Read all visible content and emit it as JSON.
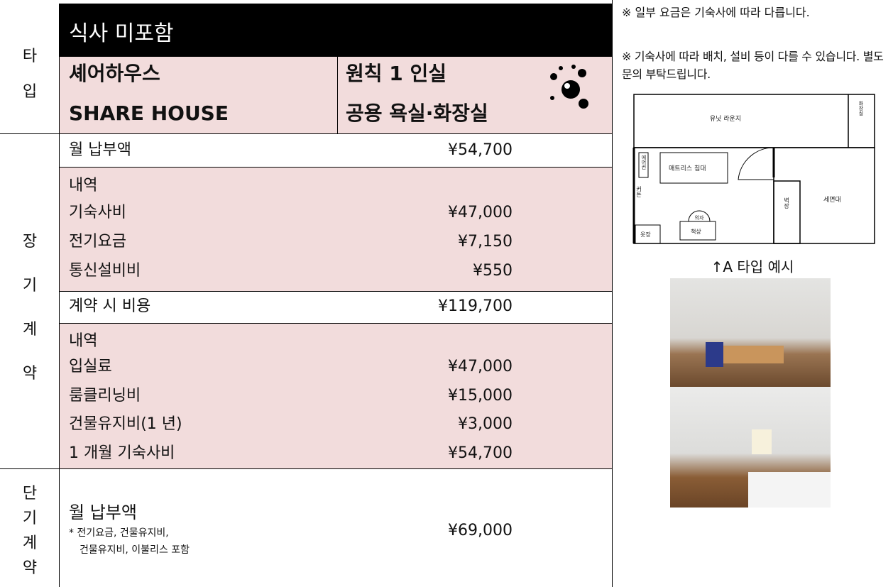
{
  "header": {
    "type_label": "타입",
    "meal": "식사 미포함",
    "housing_ko": "셰어하우스",
    "housing_en": "SHARE HOUSE",
    "room_line1": "원칙 1 인실",
    "room_line2": "공용 욕실·화장실"
  },
  "long_term": {
    "label": "장기계약",
    "monthly": {
      "label": "월 납부액",
      "amount": "¥54,700"
    },
    "monthly_breakdown": {
      "heading": "내역",
      "items": [
        {
          "label": "기숙사비",
          "amount": "¥47,000"
        },
        {
          "label": "전기요금",
          "amount": "¥7,150"
        },
        {
          "label": "통신설비비",
          "amount": "¥550"
        }
      ]
    },
    "contract": {
      "label": "계약 시 비용",
      "amount": "¥119,700"
    },
    "contract_breakdown": {
      "heading": "내역",
      "items": [
        {
          "label": "입실료",
          "amount": "¥47,000"
        },
        {
          "label": "룸클리닝비",
          "amount": "¥15,000"
        },
        {
          "label": "건물유지비(1 년)",
          "amount": "¥3,000"
        },
        {
          "label": "1 개월 기숙사비",
          "amount": "¥54,700"
        }
      ]
    }
  },
  "short_term": {
    "label": "단기계약",
    "monthly": {
      "label": "월 납부액",
      "amount": "¥69,000",
      "note_line1": "* 전기요금, 건물유지비,",
      "note_line2": "건물유지비, 이불리스 포함"
    }
  },
  "notes": [
    "※ 일부 요금은 기숙사에 따라 다릅니다.",
    "※ 기숙사에 따라 배치, 설비 등이 다를 수 있습니다. 별도 문의 부탁드립니다."
  ],
  "floor_plan": {
    "lounge": "유닛 라운지",
    "toilet": "화장실",
    "aircon": "에어컨",
    "bed": "매트리스 침대",
    "curtain": "커튼",
    "chair": "의자",
    "wardrobe": "옷장",
    "desk": "책상",
    "closet": "벽장",
    "washbasin": "세면대"
  },
  "caption": "↑A 타입 예시"
}
